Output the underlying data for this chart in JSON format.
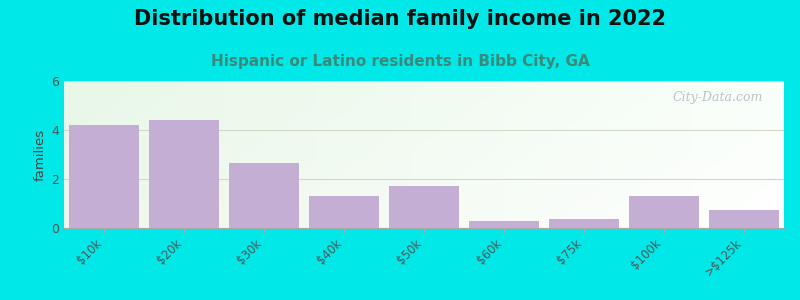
{
  "title": "Distribution of median family income in 2022",
  "subtitle": "Hispanic or Latino residents in Bibb City, GA",
  "categories": [
    "$10k",
    "$20k",
    "$30k",
    "$40k",
    "$50k",
    "$60k",
    "$75k",
    "$100k",
    ">$125k"
  ],
  "values": [
    4.2,
    4.4,
    2.65,
    1.3,
    1.7,
    0.3,
    0.35,
    1.3,
    0.75
  ],
  "bar_color": "#c4aed4",
  "background_outer": "#00e8e8",
  "ylabel": "families",
  "ylim": [
    0,
    6
  ],
  "yticks": [
    0,
    2,
    4,
    6
  ],
  "grid_color": "#d0d8c8",
  "title_fontsize": 15,
  "subtitle_fontsize": 11,
  "subtitle_color": "#3a8a7a",
  "watermark": "City-Data.com",
  "watermark_color": "#b0b8c0"
}
